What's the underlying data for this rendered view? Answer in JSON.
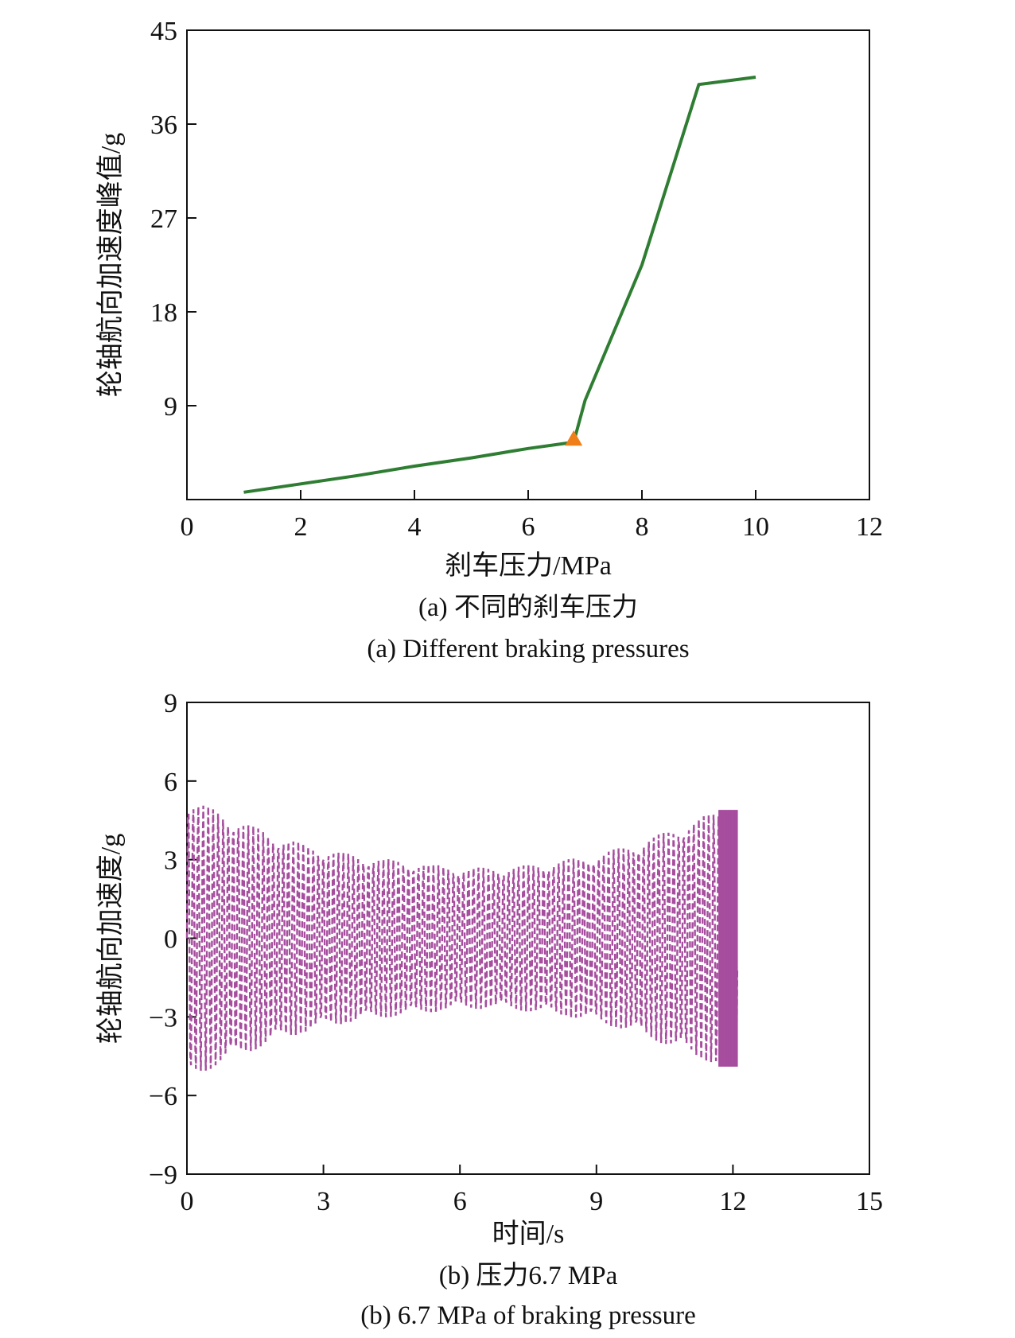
{
  "chart_data": [
    {
      "type": "line",
      "xlabel": "刹车压力/MPa",
      "ylabel": "轮轴航向加速度峰值/g",
      "xlim": [
        0,
        12
      ],
      "ylim": [
        0,
        45
      ],
      "xticks": [
        "0",
        "2",
        "4",
        "6",
        "8",
        "10",
        "12"
      ],
      "yticks": [
        "9",
        "18",
        "27",
        "36",
        "45"
      ],
      "series": [
        {
          "color": "#2e7d32",
          "points": [
            [
              1,
              0.7
            ],
            [
              2,
              1.5
            ],
            [
              3,
              2.3
            ],
            [
              4,
              3.2
            ],
            [
              5,
              4.0
            ],
            [
              6,
              4.9
            ],
            [
              6.8,
              5.5
            ],
            [
              7.0,
              9.5
            ],
            [
              8.0,
              22.5
            ],
            [
              9.0,
              39.8
            ],
            [
              10.0,
              40.5
            ]
          ]
        }
      ],
      "marker": {
        "shape": "triangle",
        "color": "#f07f1a",
        "x": 6.8,
        "y": 5.8
      },
      "caption_cn": "(a) 不同的刹车压力",
      "caption_en": "(a) Different braking pressures"
    },
    {
      "type": "line",
      "xlabel": "时间/s",
      "ylabel": "轮轴航向加速度/g",
      "xlim": [
        0,
        15
      ],
      "ylim": [
        -9,
        9
      ],
      "xticks": [
        "0",
        "3",
        "6",
        "9",
        "12",
        "15"
      ],
      "yticks": [
        "−9",
        "−6",
        "−3",
        "0",
        "3",
        "6",
        "9"
      ],
      "series": [
        {
          "color": "#a64d9e",
          "style": "dashed oscillation",
          "t_start": 0,
          "t_end": 12.1,
          "envelope": [
            [
              0,
              5.4
            ],
            [
              1,
              4.6
            ],
            [
              2,
              3.9
            ],
            [
              3,
              3.4
            ],
            [
              4,
              3.1
            ],
            [
              5,
              2.9
            ],
            [
              6,
              2.7
            ],
            [
              7,
              2.7
            ],
            [
              8,
              2.9
            ],
            [
              9,
              3.2
            ],
            [
              10,
              3.7
            ],
            [
              11,
              4.4
            ],
            [
              11.7,
              4.9
            ],
            [
              12.1,
              4.9
            ]
          ]
        }
      ],
      "caption_cn": "(b) 压力6.7 MPa",
      "caption_en": "(b) 6.7 MPa of braking pressure"
    }
  ]
}
